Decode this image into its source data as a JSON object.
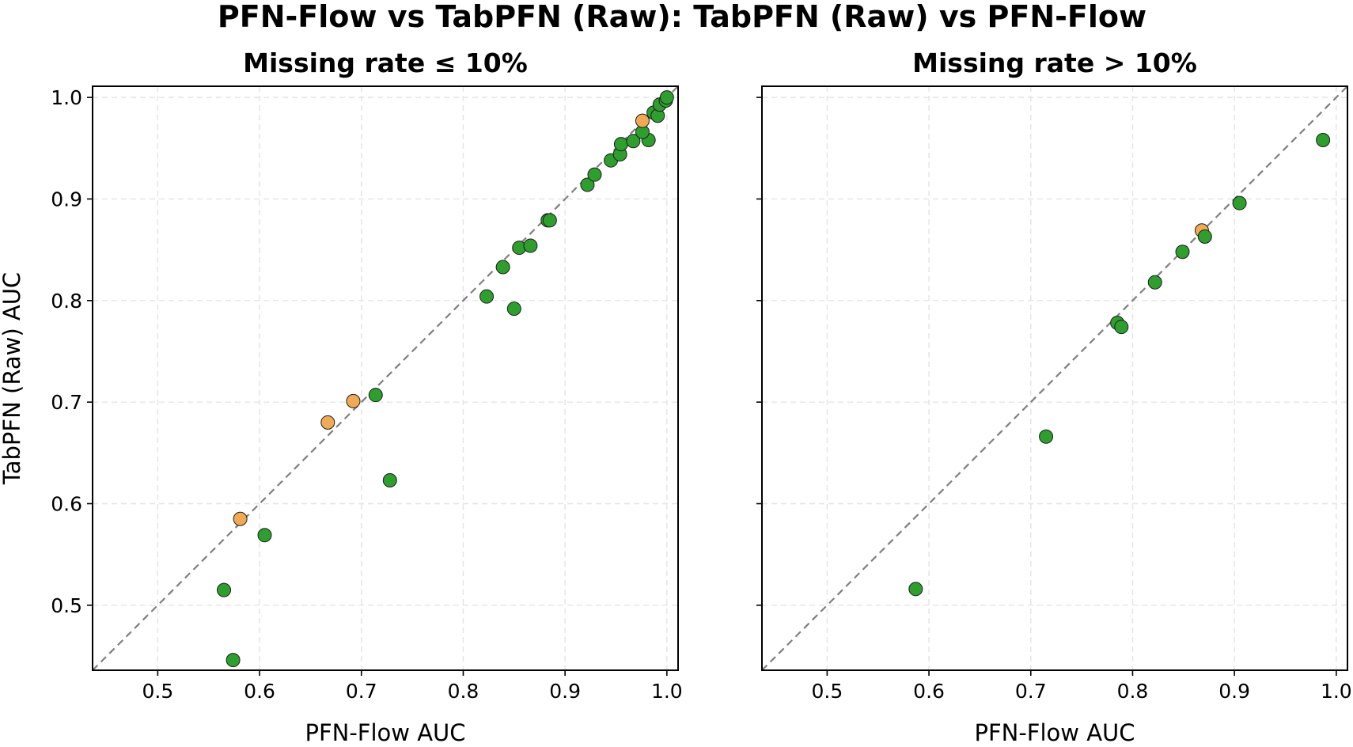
{
  "figure": {
    "title": "PFN-Flow vs TabPFN (Raw): TabPFN (Raw) vs PFN-Flow"
  },
  "colors": {
    "tabpfn_better": "#f0aa55",
    "pfnflow_better": "#2e9e2e",
    "diagonal": "#7f7f7f"
  },
  "chart_data": [
    {
      "type": "scatter",
      "title": "Missing rate ≤ 10%",
      "xlabel": "PFN-Flow AUC",
      "ylabel": "TabPFN (Raw) AUC",
      "xlim": [
        0.436,
        1.011
      ],
      "ylim": [
        0.436,
        1.011
      ],
      "xticks": [
        0.5,
        0.6,
        0.7,
        0.8,
        0.9,
        1.0
      ],
      "yticks": [
        0.5,
        0.6,
        0.7,
        0.8,
        0.9,
        1.0
      ],
      "tick_labels": [
        "0.5",
        "0.6",
        "0.7",
        "0.8",
        "0.9",
        "1.0"
      ],
      "grid": true,
      "reference_line": "y = x",
      "points": [
        {
          "x": 0.574,
          "y": 0.446,
          "group": "pfnflow_better"
        },
        {
          "x": 0.565,
          "y": 0.515,
          "group": "pfnflow_better"
        },
        {
          "x": 0.605,
          "y": 0.569,
          "group": "pfnflow_better"
        },
        {
          "x": 0.581,
          "y": 0.585,
          "group": "tabpfn_better"
        },
        {
          "x": 0.667,
          "y": 0.68,
          "group": "tabpfn_better"
        },
        {
          "x": 0.692,
          "y": 0.701,
          "group": "tabpfn_better"
        },
        {
          "x": 0.728,
          "y": 0.623,
          "group": "pfnflow_better"
        },
        {
          "x": 0.714,
          "y": 0.707,
          "group": "pfnflow_better"
        },
        {
          "x": 0.823,
          "y": 0.804,
          "group": "pfnflow_better"
        },
        {
          "x": 0.85,
          "y": 0.792,
          "group": "pfnflow_better"
        },
        {
          "x": 0.839,
          "y": 0.833,
          "group": "pfnflow_better"
        },
        {
          "x": 0.855,
          "y": 0.852,
          "group": "pfnflow_better"
        },
        {
          "x": 0.866,
          "y": 0.854,
          "group": "pfnflow_better"
        },
        {
          "x": 0.883,
          "y": 0.879,
          "group": "pfnflow_better"
        },
        {
          "x": 0.885,
          "y": 0.879,
          "group": "pfnflow_better"
        },
        {
          "x": 0.922,
          "y": 0.914,
          "group": "pfnflow_better"
        },
        {
          "x": 0.929,
          "y": 0.924,
          "group": "pfnflow_better"
        },
        {
          "x": 0.945,
          "y": 0.938,
          "group": "pfnflow_better"
        },
        {
          "x": 0.954,
          "y": 0.944,
          "group": "pfnflow_better"
        },
        {
          "x": 0.955,
          "y": 0.954,
          "group": "pfnflow_better"
        },
        {
          "x": 0.967,
          "y": 0.957,
          "group": "pfnflow_better"
        },
        {
          "x": 0.982,
          "y": 0.958,
          "group": "pfnflow_better"
        },
        {
          "x": 0.976,
          "y": 0.966,
          "group": "pfnflow_better"
        },
        {
          "x": 0.976,
          "y": 0.977,
          "group": "tabpfn_better"
        },
        {
          "x": 0.987,
          "y": 0.985,
          "group": "pfnflow_better"
        },
        {
          "x": 0.991,
          "y": 0.982,
          "group": "pfnflow_better"
        },
        {
          "x": 0.993,
          "y": 0.993,
          "group": "pfnflow_better"
        },
        {
          "x": 0.999,
          "y": 0.997,
          "group": "pfnflow_better"
        },
        {
          "x": 1.0,
          "y": 1.0,
          "group": "pfnflow_better"
        }
      ]
    },
    {
      "type": "scatter",
      "title": "Missing rate > 10%",
      "xlabel": "PFN-Flow AUC",
      "ylabel": "",
      "xlim": [
        0.436,
        1.011
      ],
      "ylim": [
        0.436,
        1.011
      ],
      "xticks": [
        0.5,
        0.6,
        0.7,
        0.8,
        0.9,
        1.0
      ],
      "yticks": [
        0.5,
        0.6,
        0.7,
        0.8,
        0.9,
        1.0
      ],
      "tick_labels": [
        "0.5",
        "0.6",
        "0.7",
        "0.8",
        "0.9",
        "1.0"
      ],
      "shared_y": true,
      "grid": true,
      "reference_line": "y = x",
      "points": [
        {
          "x": 0.587,
          "y": 0.516,
          "group": "pfnflow_better"
        },
        {
          "x": 0.715,
          "y": 0.666,
          "group": "pfnflow_better"
        },
        {
          "x": 0.785,
          "y": 0.778,
          "group": "pfnflow_better"
        },
        {
          "x": 0.789,
          "y": 0.774,
          "group": "pfnflow_better"
        },
        {
          "x": 0.822,
          "y": 0.818,
          "group": "pfnflow_better"
        },
        {
          "x": 0.849,
          "y": 0.848,
          "group": "pfnflow_better"
        },
        {
          "x": 0.868,
          "y": 0.869,
          "group": "tabpfn_better"
        },
        {
          "x": 0.871,
          "y": 0.863,
          "group": "pfnflow_better"
        },
        {
          "x": 0.905,
          "y": 0.896,
          "group": "pfnflow_better"
        },
        {
          "x": 0.987,
          "y": 0.958,
          "group": "pfnflow_better"
        }
      ]
    }
  ]
}
